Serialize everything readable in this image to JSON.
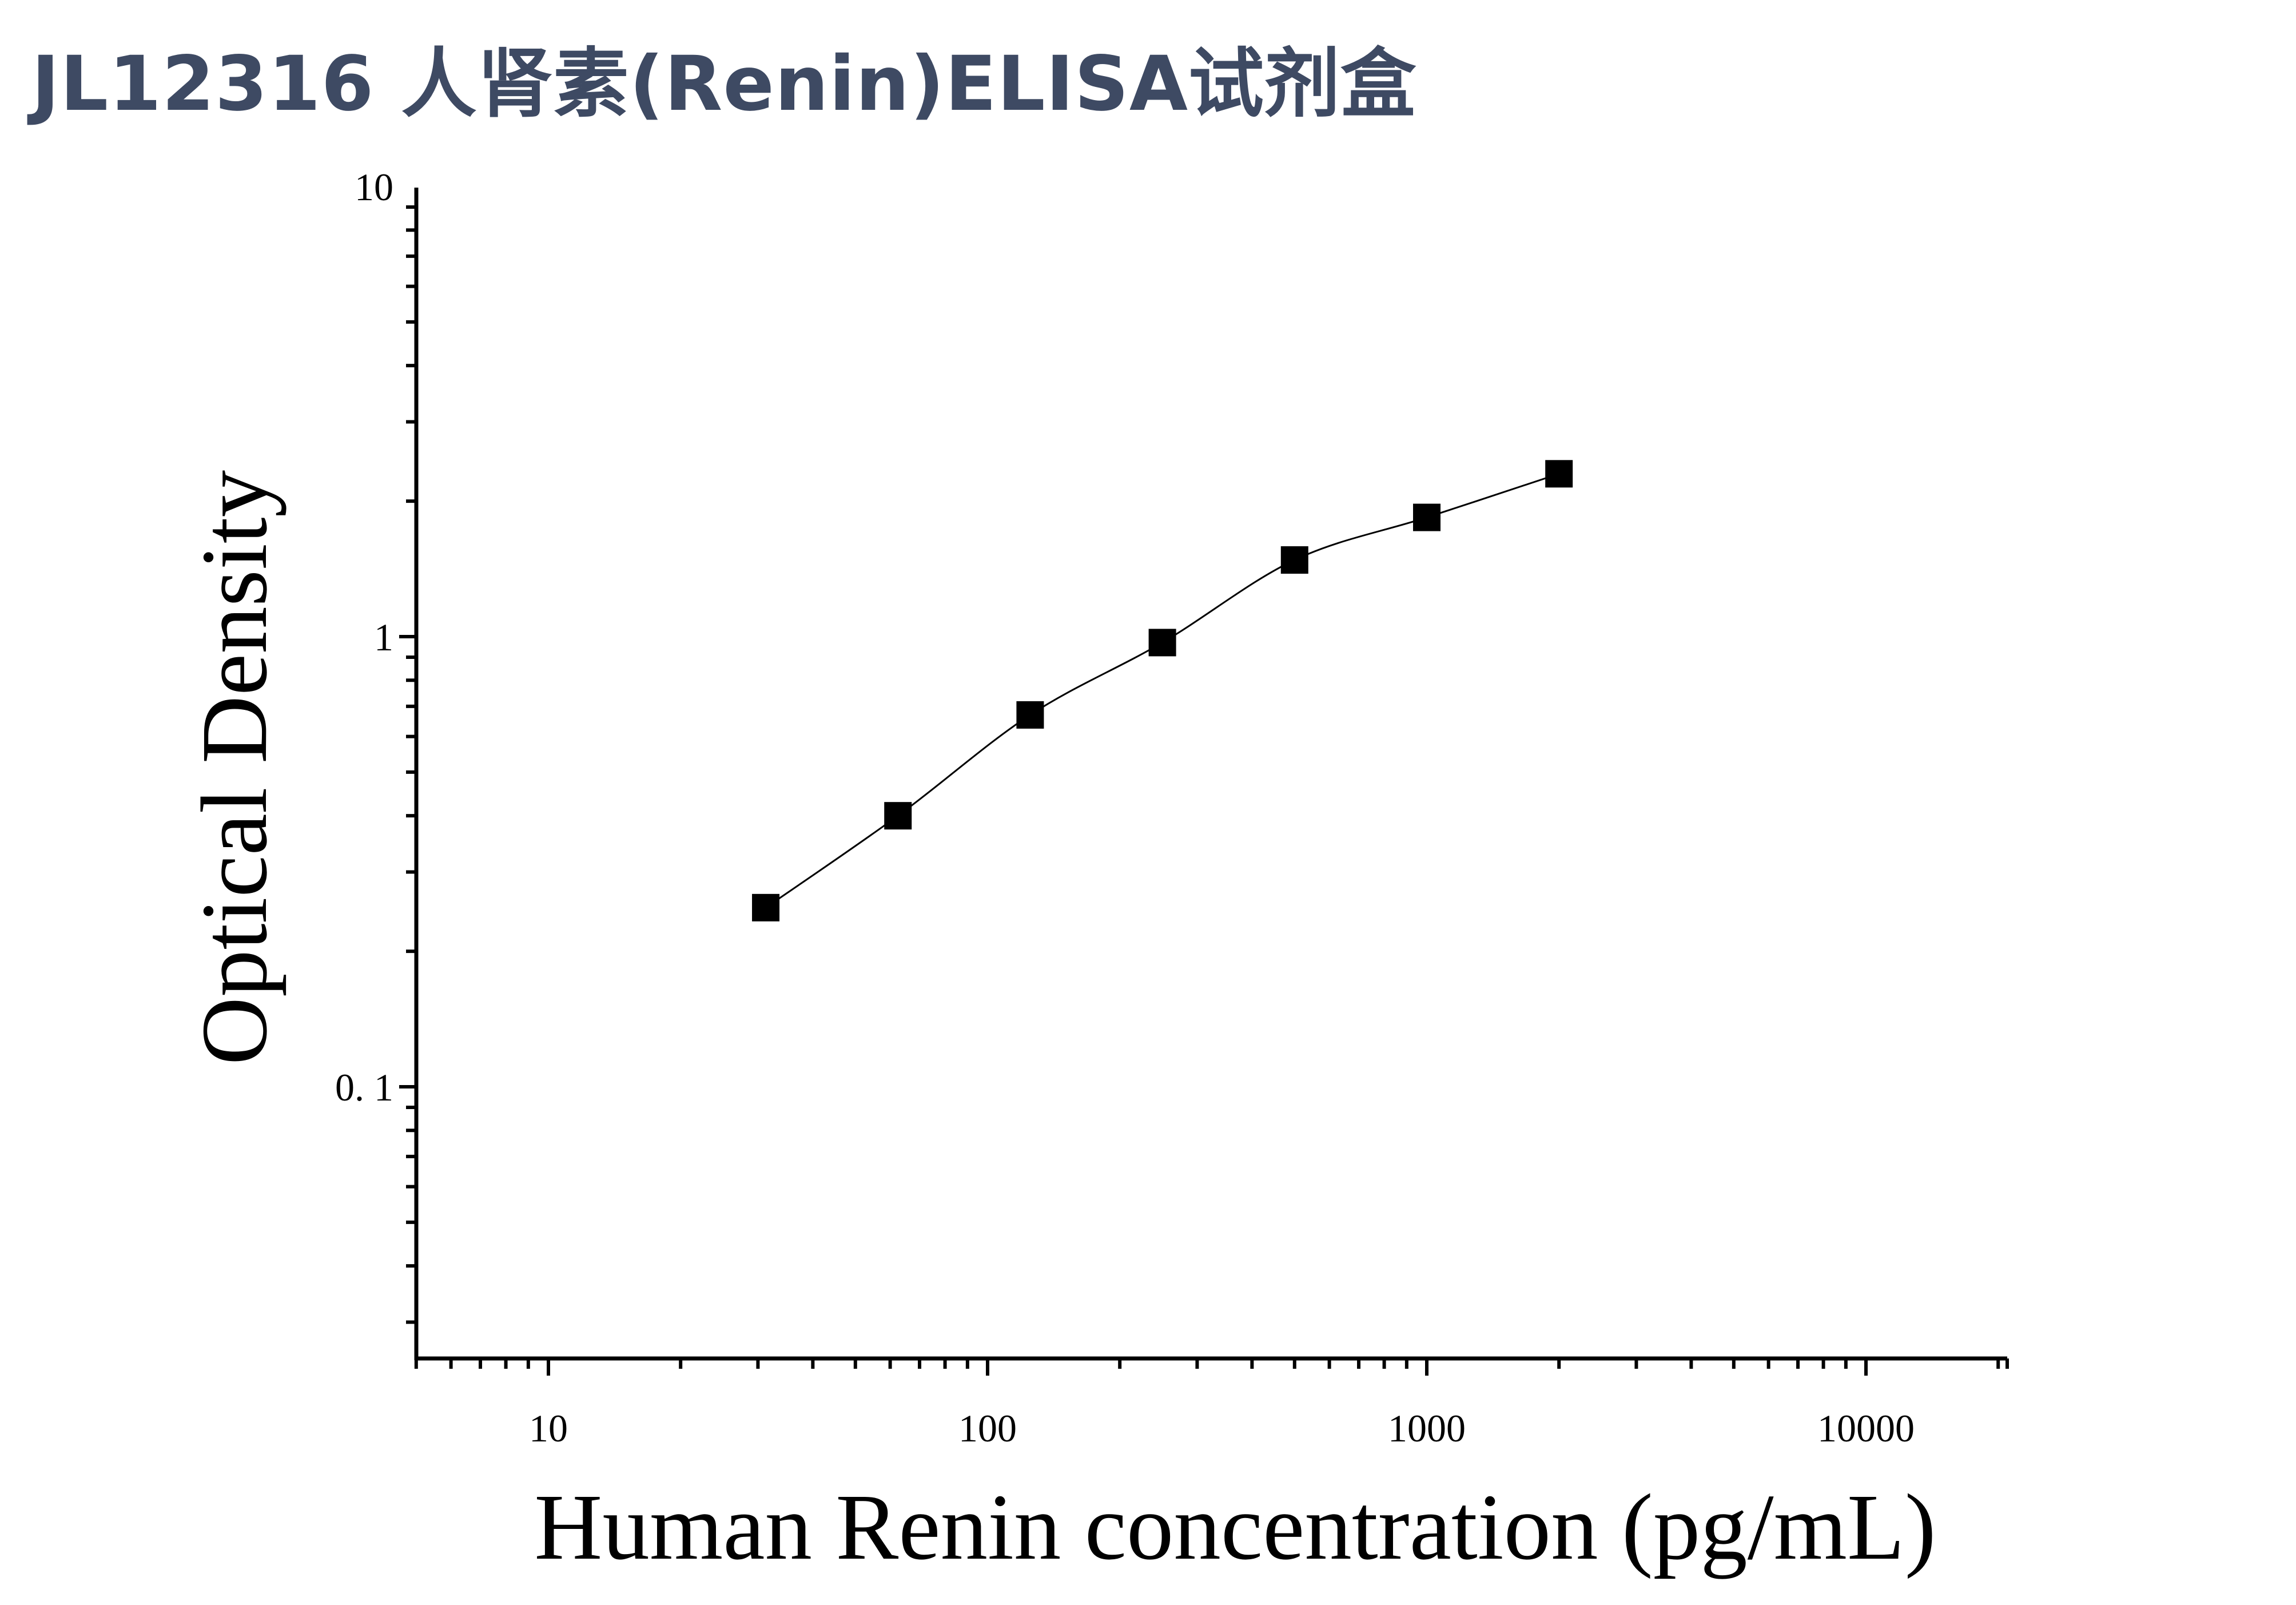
{
  "header": {
    "title": "JL12316 人肾素(Renin)ELISA试剂盒"
  },
  "colors": {
    "title": "#3e4a63",
    "axis": "#000000",
    "marker": "#000000"
  },
  "chart_data": {
    "type": "scatter",
    "title": "JL12316 人肾素(Renin)ELISA试剂盒",
    "xlabel": "Human Renin concentration (pg/mL)",
    "ylabel": "Optical Density",
    "x_scale": "log",
    "y_scale": "log",
    "xlim": [
      5,
      20000
    ],
    "ylim": [
      0.025,
      10
    ],
    "x_ticks": [
      10,
      100,
      1000,
      10000
    ],
    "x_tick_labels": [
      "10",
      "100",
      "1000",
      "10000"
    ],
    "y_ticks": [
      0.1,
      1,
      10
    ],
    "y_tick_labels": [
      "0. 1",
      "1",
      "10"
    ],
    "grid": false,
    "legend": "none",
    "marker": "square",
    "fit_line": true,
    "series": [
      {
        "x": [
          31.25,
          62.5,
          125,
          250,
          500,
          1000,
          2000
        ],
        "y": [
          0.25,
          0.4,
          0.67,
          0.97,
          1.48,
          1.84,
          2.3
        ]
      }
    ]
  }
}
